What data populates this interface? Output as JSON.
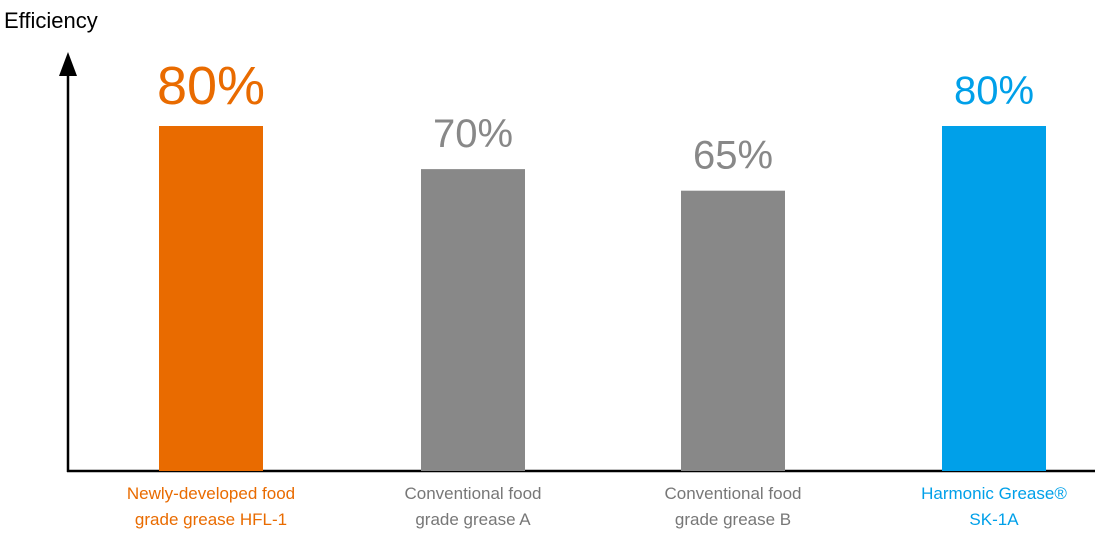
{
  "chart_data": {
    "type": "bar",
    "ylabel": "Efficiency",
    "categories": [
      [
        "Newly-developed food",
        "grade grease HFL-1"
      ],
      [
        "Conventional food",
        "grade grease A"
      ],
      [
        "Conventional food",
        "grade grease B"
      ],
      [
        "Harmonic Grease®",
        "SK-1A"
      ]
    ],
    "values": [
      80,
      70,
      65,
      80
    ],
    "value_labels": [
      "80%",
      "70%",
      "65%",
      "80%"
    ],
    "colors": [
      "#e96b00",
      "#888888",
      "#888888",
      "#00a0e9"
    ],
    "ylim": [
      0,
      100
    ],
    "grid": false,
    "legend": "none"
  }
}
